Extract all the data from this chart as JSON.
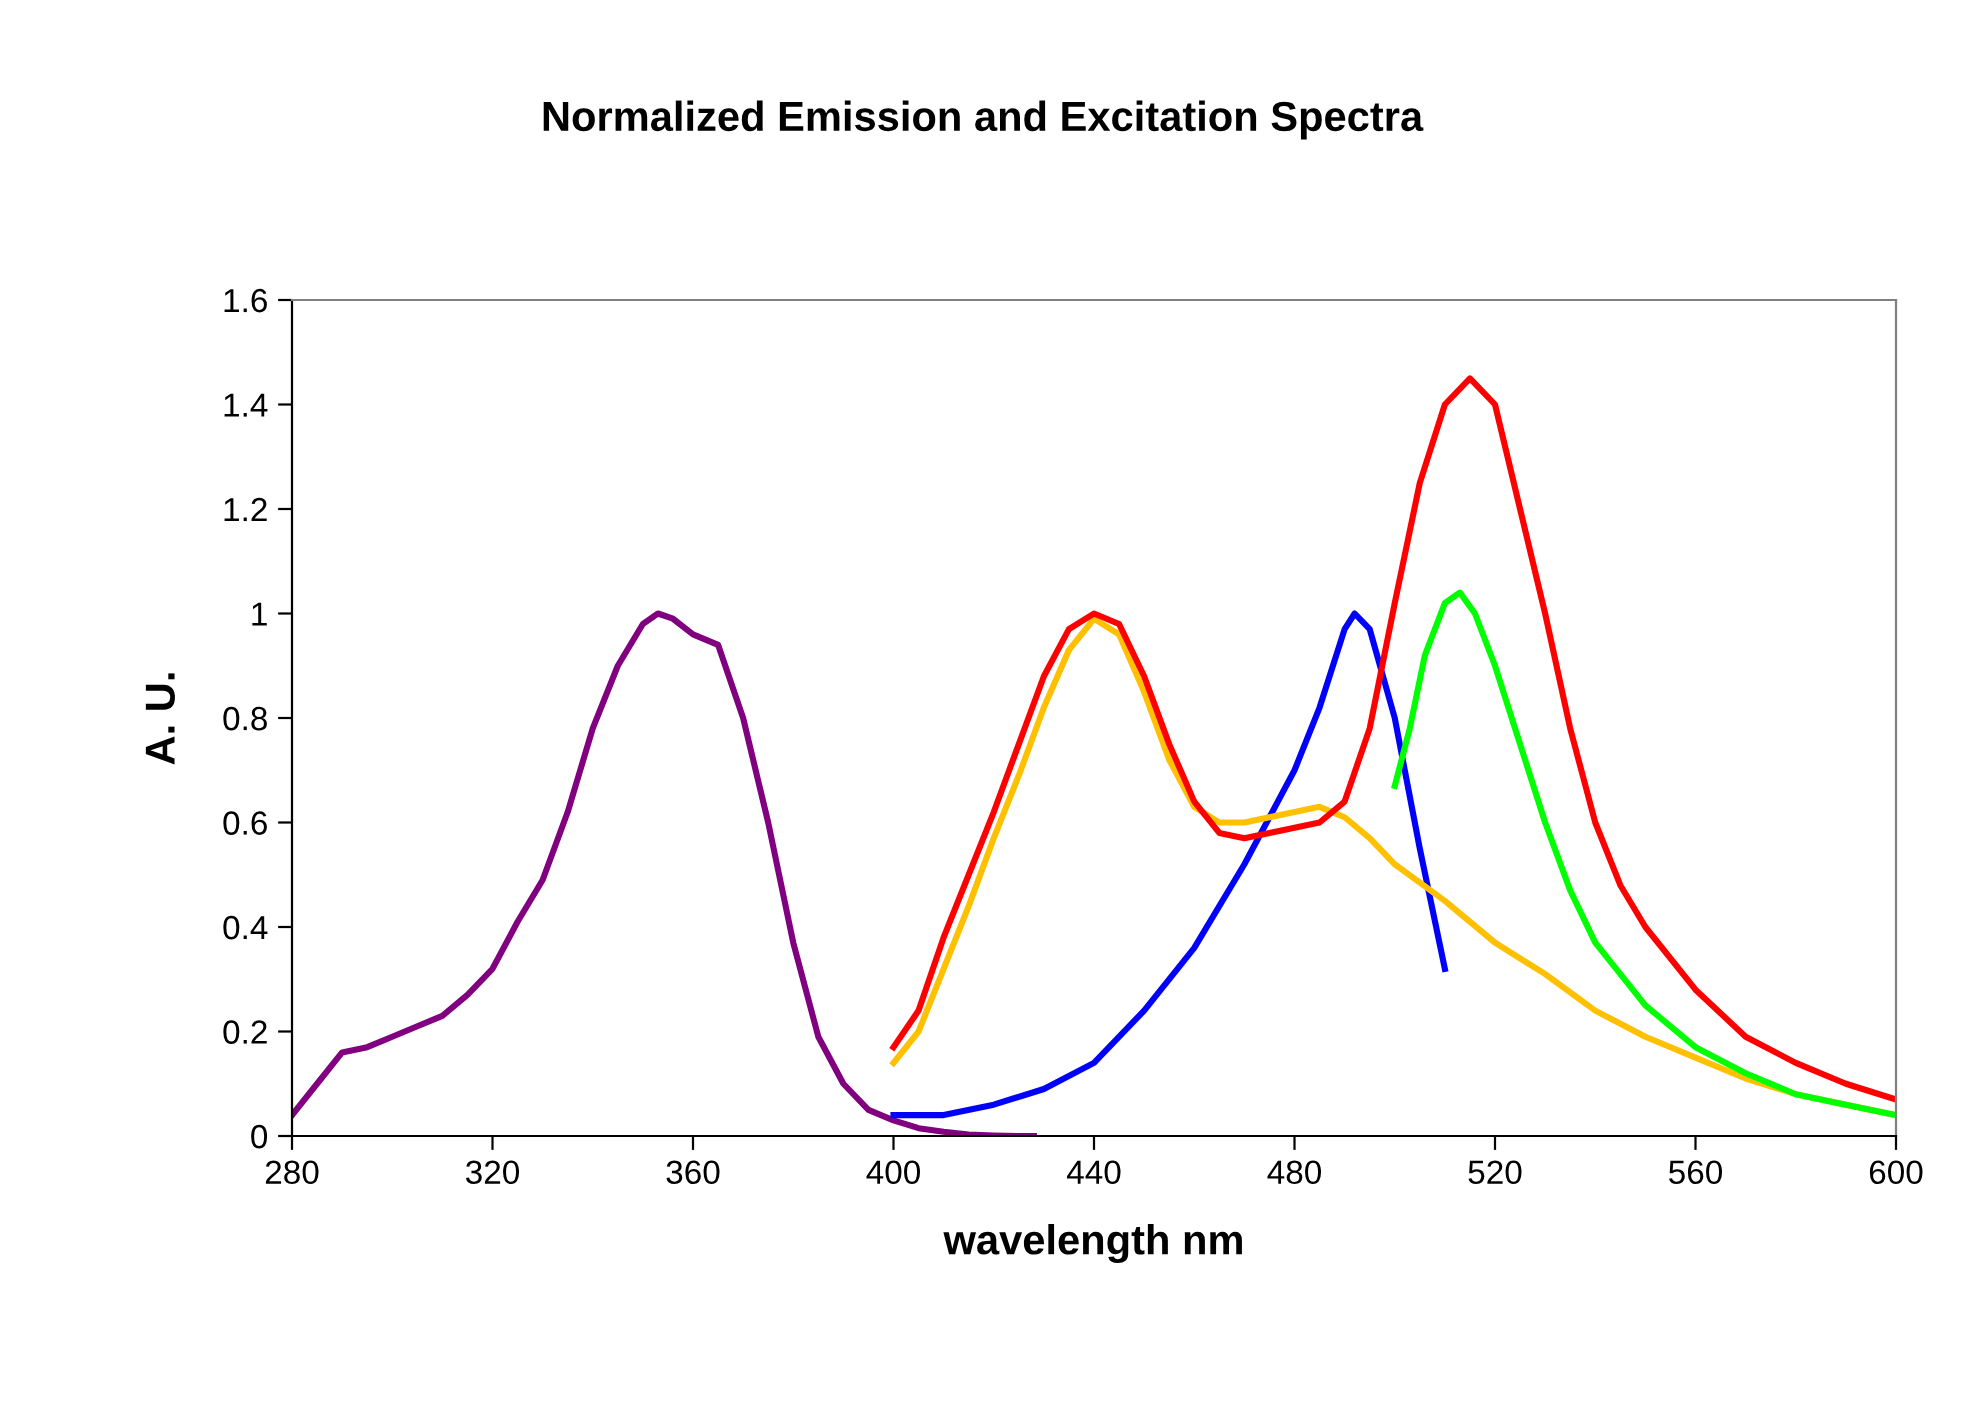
{
  "chart_data": {
    "type": "line",
    "title": "Normalized Emission and Excitation Spectra",
    "xlabel": "wavelength nm",
    "ylabel": "A. U.",
    "xlim": [
      280,
      600
    ],
    "xticks": [
      280,
      320,
      360,
      400,
      440,
      480,
      520,
      560,
      600
    ],
    "ylim": [
      0,
      1.6
    ],
    "yticks": [
      0,
      0.2,
      0.4,
      0.6,
      0.8,
      1,
      1.2,
      1.4,
      1.6
    ],
    "grid": false,
    "marker": "none",
    "line_style": "solid",
    "series": [
      {
        "color": "#800080",
        "x": [
          280,
          285,
          290,
          295,
          300,
          305,
          310,
          315,
          320,
          325,
          330,
          335,
          340,
          345,
          350,
          353,
          356,
          360,
          365,
          370,
          375,
          380,
          385,
          390,
          395,
          400,
          405,
          410,
          415,
          420,
          425,
          428
        ],
        "values": [
          0.04,
          0.1,
          0.16,
          0.17,
          0.19,
          0.21,
          0.23,
          0.27,
          0.32,
          0.41,
          0.49,
          0.62,
          0.78,
          0.9,
          0.98,
          1.0,
          0.99,
          0.96,
          0.94,
          0.8,
          0.6,
          0.37,
          0.19,
          0.1,
          0.05,
          0.03,
          0.015,
          0.008,
          0.003,
          0.001,
          0,
          0
        ]
      },
      {
        "color": "#0000ff",
        "x": [
          400,
          410,
          420,
          430,
          440,
          450,
          460,
          470,
          480,
          485,
          490,
          492,
          495,
          500,
          505,
          510
        ],
        "values": [
          0.04,
          0.04,
          0.06,
          0.09,
          0.14,
          0.24,
          0.36,
          0.52,
          0.7,
          0.82,
          0.97,
          1.0,
          0.97,
          0.8,
          0.55,
          0.32
        ]
      },
      {
        "color": "#ffc000",
        "x": [
          400,
          405,
          410,
          415,
          420,
          425,
          430,
          435,
          440,
          445,
          450,
          455,
          460,
          465,
          470,
          475,
          480,
          485,
          490,
          495,
          500,
          510,
          520,
          530,
          540,
          550,
          560,
          570,
          580,
          590,
          600
        ],
        "values": [
          0.14,
          0.2,
          0.32,
          0.44,
          0.57,
          0.69,
          0.82,
          0.93,
          0.99,
          0.96,
          0.85,
          0.72,
          0.63,
          0.6,
          0.6,
          0.61,
          0.62,
          0.63,
          0.61,
          0.57,
          0.52,
          0.45,
          0.37,
          0.31,
          0.24,
          0.19,
          0.15,
          0.11,
          0.08,
          0.06,
          0.04
        ]
      },
      {
        "color": "#ff0000",
        "x": [
          400,
          405,
          410,
          415,
          420,
          425,
          430,
          435,
          440,
          445,
          450,
          455,
          460,
          465,
          470,
          475,
          480,
          485,
          490,
          495,
          500,
          505,
          510,
          515,
          520,
          525,
          530,
          535,
          540,
          545,
          550,
          560,
          570,
          580,
          590,
          600
        ],
        "values": [
          0.17,
          0.24,
          0.38,
          0.5,
          0.62,
          0.75,
          0.88,
          0.97,
          1.0,
          0.98,
          0.88,
          0.75,
          0.64,
          0.58,
          0.57,
          0.58,
          0.59,
          0.6,
          0.64,
          0.78,
          1.02,
          1.25,
          1.4,
          1.45,
          1.4,
          1.2,
          1.0,
          0.78,
          0.6,
          0.48,
          0.4,
          0.28,
          0.19,
          0.14,
          0.1,
          0.07
        ]
      },
      {
        "color": "#00ff00",
        "x": [
          500,
          503,
          506,
          510,
          513,
          516,
          520,
          525,
          530,
          535,
          540,
          550,
          560,
          570,
          580,
          590,
          600
        ],
        "values": [
          0.67,
          0.78,
          0.92,
          1.02,
          1.04,
          1.0,
          0.9,
          0.75,
          0.6,
          0.47,
          0.37,
          0.25,
          0.17,
          0.12,
          0.08,
          0.06,
          0.04
        ]
      }
    ]
  }
}
